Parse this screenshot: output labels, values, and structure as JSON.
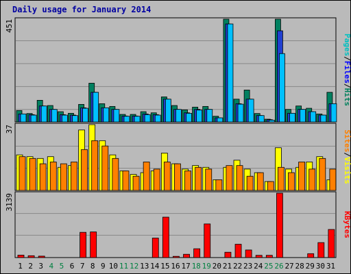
{
  "title": "Daily usage for January 2014",
  "chart_data": [
    {
      "type": "bar",
      "panel": "pages-files-hits",
      "ymax_label": "451",
      "ylim": [
        0,
        451
      ],
      "categories": [
        "1",
        "2",
        "3",
        "4",
        "5",
        "6",
        "7",
        "8",
        "9",
        "10",
        "11",
        "12",
        "13",
        "14",
        "15",
        "16",
        "17",
        "18",
        "19",
        "20",
        "21",
        "22",
        "23",
        "24",
        "25",
        "26",
        "27",
        "28",
        "29",
        "30",
        "31"
      ],
      "legend": [
        {
          "text": "Pages",
          "color": "#00c0c0"
        },
        {
          "text": "/",
          "color": "#000000"
        },
        {
          "text": "Files",
          "color": "#0000ff"
        },
        {
          "text": "/",
          "color": "#000000"
        },
        {
          "text": "Hits",
          "color": "#00805c"
        }
      ],
      "series": [
        {
          "color": "#008060",
          "values": [
            50,
            37,
            95,
            72,
            45,
            38,
            77,
            170,
            80,
            68,
            33,
            33,
            45,
            40,
            110,
            72,
            53,
            65,
            68,
            25,
            451,
            100,
            140,
            37,
            12,
            451,
            55,
            70,
            60,
            35,
            130
          ]
        },
        {
          "color": "#2040d0",
          "values": [
            35,
            32,
            70,
            55,
            32,
            30,
            62,
            130,
            62,
            55,
            26,
            26,
            35,
            32,
            100,
            55,
            40,
            55,
            55,
            18,
            430,
            80,
            100,
            28,
            10,
            400,
            38,
            55,
            45,
            30,
            80
          ]
        },
        {
          "color": "#00c0ff",
          "values": [
            35,
            30,
            70,
            55,
            30,
            28,
            60,
            130,
            62,
            55,
            25,
            25,
            32,
            30,
            100,
            55,
            38,
            52,
            55,
            18,
            430,
            78,
            100,
            28,
            8,
            300,
            38,
            55,
            45,
            30,
            80
          ]
        }
      ]
    },
    {
      "type": "bar",
      "panel": "visits-sites",
      "ymax_label": "37",
      "ylim": [
        0,
        37
      ],
      "legend": [
        {
          "text": "Sites",
          "color": "#ff8000"
        },
        {
          "text": "/",
          "color": "#000000"
        },
        {
          "text": "Visits",
          "color": "#ffff00"
        }
      ],
      "series": [
        {
          "color": "#ffff00",
          "values": [
            20,
            19,
            18,
            19,
            13,
            14,
            34,
            37,
            28,
            20,
            11,
            9,
            10,
            11,
            21,
            15,
            12,
            14,
            13,
            6,
            13,
            17,
            12,
            10,
            5,
            24,
            12,
            13,
            16,
            19,
            6
          ]
        },
        {
          "color": "#ff8000",
          "values": [
            19,
            18,
            15,
            16,
            15,
            16,
            23,
            28,
            25,
            18,
            11,
            8,
            16,
            12,
            16,
            15,
            11,
            13,
            12,
            6,
            14,
            14,
            8,
            10,
            5,
            13,
            10,
            16,
            12,
            18,
            12
          ]
        }
      ]
    },
    {
      "type": "bar",
      "panel": "kbytes",
      "ymax_label": "3139",
      "ylim": [
        0,
        3139
      ],
      "legend": [
        {
          "text": "KBytes",
          "color": "#ff0000"
        }
      ],
      "series": [
        {
          "color": "#ff0000",
          "values": [
            120,
            90,
            70,
            0,
            0,
            0,
            1230,
            1250,
            0,
            0,
            0,
            0,
            0,
            950,
            1970,
            60,
            160,
            430,
            1640,
            0,
            260,
            650,
            370,
            110,
            110,
            3139,
            0,
            0,
            190,
            730,
            1370
          ]
        }
      ]
    }
  ],
  "colors": {
    "background": "#bababa",
    "plot_background": "#bababa",
    "gridline": "#888888",
    "title": "#0000a0",
    "weekday_label": "#000000",
    "weekend_label": "#008040"
  },
  "weekend_days": [
    "4",
    "5",
    "11",
    "12",
    "18",
    "19",
    "25",
    "26"
  ]
}
